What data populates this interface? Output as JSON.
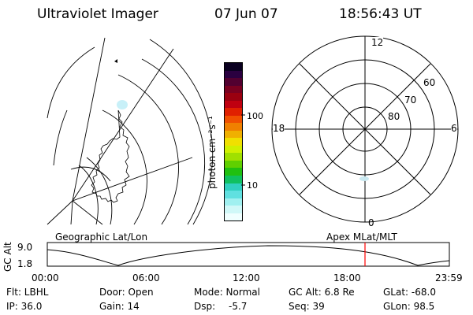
{
  "header": {
    "instrument": "Ultraviolet Imager",
    "date": "07 Jun 07",
    "time": "18:56:43 UT"
  },
  "colorbar": {
    "unit_label": "photon cm⁻²s⁻¹",
    "ticks": [
      "100",
      "10"
    ],
    "colors": [
      "#0a0020",
      "#2a0040",
      "#520030",
      "#7a0020",
      "#9a0010",
      "#c00010",
      "#e02000",
      "#f05000",
      "#f08000",
      "#f0b000",
      "#f0e000",
      "#d0f000",
      "#a0e000",
      "#60d000",
      "#20c010",
      "#10c060",
      "#30d0c0",
      "#60e0e0",
      "#a0f0f0",
      "#d0f8f8",
      "#f0ffff"
    ]
  },
  "left_panel": {
    "label": "Geographic Lat/Lon"
  },
  "right_panel": {
    "label": "Apex MLat/MLT",
    "lat_labels": [
      "60",
      "70",
      "80"
    ],
    "mlt_labels": {
      "top": "12",
      "left": "18",
      "right": "6",
      "bottom": "0"
    }
  },
  "altitude_plot": {
    "ylabel": "GC Alt",
    "y_ticks": [
      "9.0",
      "1.8"
    ],
    "x_ticks": [
      "00:00",
      "06:00",
      "12:00",
      "18:00",
      "23:59"
    ],
    "marker_color": "#ff0000"
  },
  "info": {
    "flt": "Flt: LBHL",
    "ip": "IP: 36.0",
    "door": "Door: Open",
    "gain": "Gain: 14",
    "mode": "Mode: Normal",
    "dsp_label": "Dsp:",
    "dsp_value": "-5.7",
    "gc_alt": "GC Alt: 6.8 Re",
    "seq": "Seq: 39",
    "glat": "GLat: -68.0",
    "glon": "GLon: 98.5"
  }
}
